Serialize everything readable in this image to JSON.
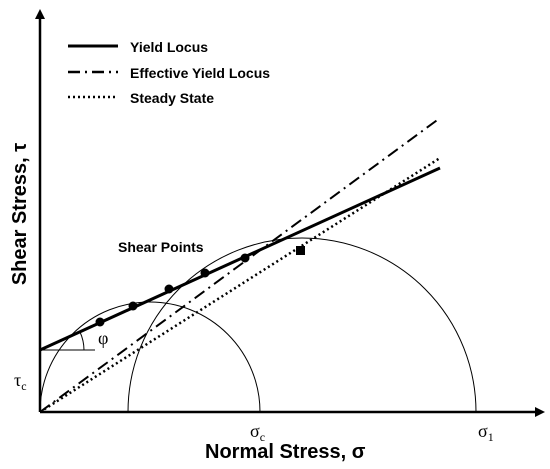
{
  "legend": {
    "items": [
      {
        "label": "Yield Locus",
        "style": "solid"
      },
      {
        "label": "Effective Yield Locus",
        "style": "dash-dot"
      },
      {
        "label": "Steady State",
        "style": "dotted"
      }
    ]
  },
  "axes": {
    "x_label": "Normal Stress, σ",
    "y_label": "Shear Stress, τ"
  },
  "annotations": {
    "shear_points": "Shear Points",
    "phi": "φ",
    "tau_c_main": "τ",
    "tau_c_sub": "c",
    "sigma_c_main": "σ",
    "sigma_c_sub": "c",
    "sigma_1_main": "σ",
    "sigma_1_sub": "1"
  },
  "colors": {
    "ink": "#000000",
    "background": "#ffffff"
  }
}
